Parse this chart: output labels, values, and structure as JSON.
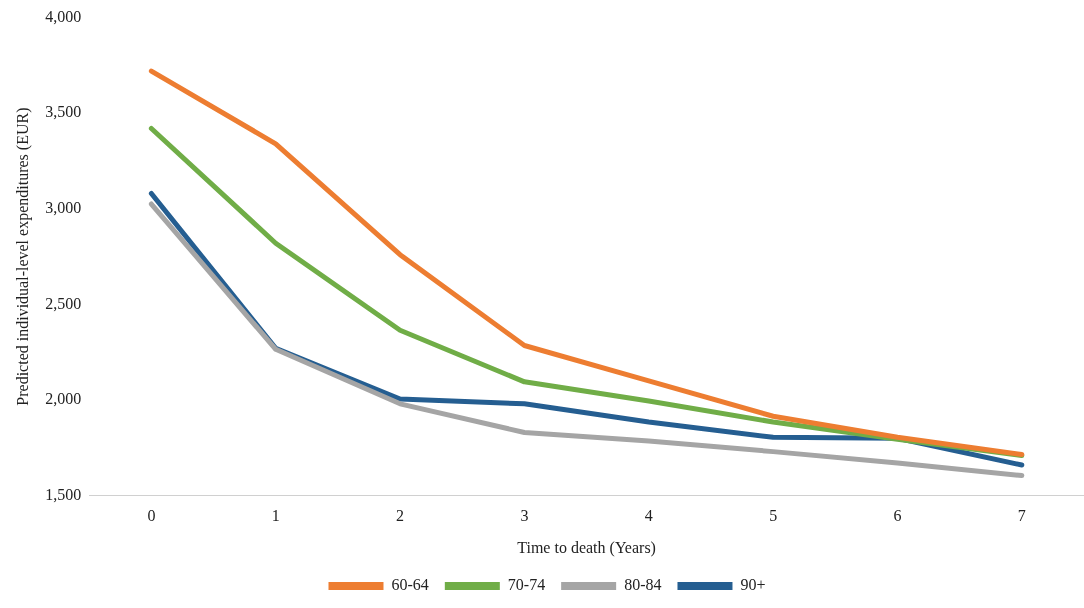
{
  "chart_data": {
    "type": "line",
    "xlabel": "Time to death (Years)",
    "ylabel": "Predicted individual-level expenditures (EUR)",
    "categories": [
      "0",
      "1",
      "2",
      "3",
      "4",
      "5",
      "6",
      "7"
    ],
    "series": [
      {
        "name": "60-64",
        "color": "#ed7d31",
        "values": [
          3720,
          3340,
          2760,
          2285,
          2100,
          1915,
          1805,
          1715
        ]
      },
      {
        "name": "70-74",
        "color": "#70ad47",
        "values": [
          3420,
          2820,
          2365,
          2095,
          1995,
          1885,
          1795,
          1710
        ]
      },
      {
        "name": "80-84",
        "color": "#a5a5a5",
        "values": [
          3025,
          2265,
          1980,
          1830,
          1785,
          1730,
          1670,
          1605
        ]
      },
      {
        "name": "90+",
        "color": "#255e91",
        "values": [
          3080,
          2270,
          2005,
          1980,
          1885,
          1805,
          1800,
          1660
        ]
      }
    ],
    "ylim": [
      1500,
      4000
    ],
    "yticks": [
      {
        "value": 1500,
        "label": "1,500"
      },
      {
        "value": 2000,
        "label": "2,000"
      },
      {
        "value": 2500,
        "label": "2,500"
      },
      {
        "value": 3000,
        "label": "3,000"
      },
      {
        "value": 3500,
        "label": "3,500"
      },
      {
        "value": 4000,
        "label": "4,000"
      }
    ],
    "grid": false,
    "legend": "bottom",
    "marker": "none",
    "line_style": "solid"
  }
}
